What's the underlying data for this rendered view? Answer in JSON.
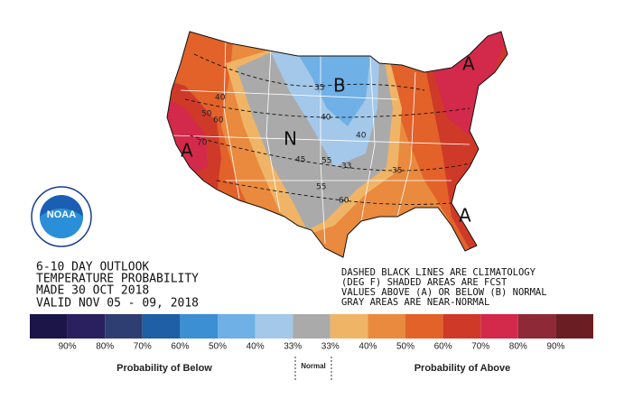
{
  "logo": "NOAA",
  "outlook": {
    "lines": [
      "6-10 DAY OUTLOOK",
      "TEMPERATURE PROBABILITY",
      "MADE  30 OCT 2018",
      "VALID  NOV 05 - 09, 2018"
    ]
  },
  "note": {
    "lines": [
      "DASHED BLACK LINES ARE CLIMATOLOGY",
      "(DEG F) SHADED AREAS ARE FCST",
      "VALUES ABOVE (A) OR BELOW (B) NORMAL",
      "GRAY AREAS ARE NEAR-NORMAL"
    ]
  },
  "map": {
    "labels": [
      "A",
      "A",
      "A",
      "B",
      "N",
      "40",
      "50",
      "60",
      "70",
      "35",
      "40",
      "40",
      "45",
      "55",
      "33",
      "35",
      "55",
      "60"
    ]
  },
  "legend": {
    "colors": [
      "#1c1548",
      "#2a2060",
      "#2e3e72",
      "#1e5fa6",
      "#3d8fd4",
      "#6fb0e6",
      "#a3c8ea",
      "#aaaaaa",
      "#f0b466",
      "#e98a3e",
      "#e2622a",
      "#cf3a28",
      "#d3294a",
      "#8e2a38",
      "#6a1e24"
    ],
    "labels": [
      "90%",
      "80%",
      "70%",
      "60%",
      "50%",
      "40%",
      "33%",
      "33%",
      "40%",
      "50%",
      "60%",
      "70%",
      "80%",
      "90%"
    ],
    "below_label": "Probability of Below",
    "normal_label": "Normal",
    "above_label": "Probability of Above"
  }
}
